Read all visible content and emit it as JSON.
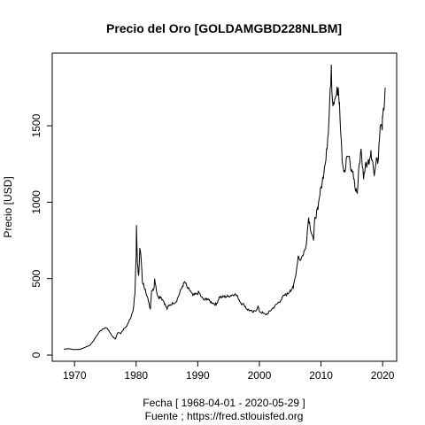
{
  "chart_data": {
    "type": "line",
    "title": "Precio del Oro [GOLDAMGBD228NLBM]",
    "xlabel": "Fecha [ 1968-04-01 - 2020-05-29 ]",
    "xlabel2": "Fuente ; https://fred.stlouisfed.org",
    "ylabel": "Precio [USD]",
    "xlim": [
      1968.25,
      2020.41
    ],
    "ylim": [
      35,
      1900
    ],
    "xticks": [
      1970,
      1980,
      1990,
      2000,
      2010,
      2020
    ],
    "yticks": [
      0,
      500,
      1000,
      1500
    ],
    "grid": false,
    "series": [
      {
        "color": "#000000",
        "x": [
          1968.25,
          1969.0,
          1970.0,
          1971.0,
          1972.0,
          1972.5,
          1973.0,
          1973.5,
          1974.0,
          1974.5,
          1975.0,
          1975.5,
          1976.0,
          1976.6,
          1977.0,
          1977.5,
          1978.0,
          1978.5,
          1979.0,
          1979.5,
          1979.8,
          1980.0,
          1980.05,
          1980.2,
          1980.4,
          1980.6,
          1980.8,
          1981.0,
          1981.5,
          1982.0,
          1982.3,
          1982.5,
          1982.9,
          1983.0,
          1983.3,
          1983.6,
          1984.0,
          1984.5,
          1985.0,
          1985.2,
          1985.6,
          1986.0,
          1986.5,
          1987.0,
          1987.5,
          1987.9,
          1988.3,
          1988.8,
          1989.2,
          1989.8,
          1990.2,
          1990.6,
          1991.0,
          1991.5,
          1992.0,
          1992.5,
          1993.0,
          1993.5,
          1994.0,
          1995.0,
          1996.0,
          1996.5,
          1997.0,
          1997.5,
          1998.0,
          1998.6,
          1999.0,
          1999.6,
          1999.8,
          2000.0,
          2000.6,
          2001.0,
          2001.3,
          2002.0,
          2002.5,
          2003.0,
          2003.5,
          2004.0,
          2004.6,
          2005.0,
          2005.5,
          2006.0,
          2006.3,
          2006.6,
          2007.0,
          2007.5,
          2008.0,
          2008.2,
          2008.8,
          2009.0,
          2009.5,
          2010.0,
          2010.5,
          2011.0,
          2011.3,
          2011.68,
          2011.8,
          2012.0,
          2012.5,
          2012.8,
          2013.0,
          2013.3,
          2013.5,
          2013.9,
          2014.2,
          2014.5,
          2014.9,
          2015.2,
          2015.5,
          2015.9,
          2016.2,
          2016.5,
          2016.9,
          2017.2,
          2017.5,
          2017.9,
          2018.1,
          2018.5,
          2018.7,
          2019.0,
          2019.3,
          2019.6,
          2019.9,
          2020.0,
          2020.2,
          2020.41
        ],
        "y": [
          39,
          42,
          36,
          39,
          56,
          65,
          90,
          120,
          150,
          170,
          180,
          165,
          130,
          105,
          145,
          140,
          175,
          190,
          235,
          290,
          400,
          650,
          850,
          600,
          520,
          700,
          640,
          480,
          430,
          350,
          300,
          420,
          440,
          500,
          420,
          380,
          380,
          350,
          300,
          320,
          330,
          340,
          350,
          400,
          450,
          480,
          440,
          420,
          390,
          400,
          410,
          380,
          360,
          370,
          350,
          340,
          330,
          380,
          380,
          385,
          400,
          380,
          340,
          330,
          300,
          290,
          280,
          300,
          320,
          285,
          275,
          265,
          270,
          300,
          320,
          340,
          360,
          390,
          400,
          425,
          440,
          550,
          650,
          620,
          650,
          700,
          900,
          850,
          750,
          900,
          950,
          1100,
          1200,
          1350,
          1550,
          1900,
          1700,
          1650,
          1700,
          1750,
          1650,
          1400,
          1250,
          1200,
          1300,
          1300,
          1200,
          1200,
          1100,
          1060,
          1250,
          1350,
          1150,
          1250,
          1250,
          1280,
          1340,
          1220,
          1190,
          1290,
          1280,
          1500,
          1480,
          1550,
          1600,
          1750
        ]
      }
    ]
  }
}
